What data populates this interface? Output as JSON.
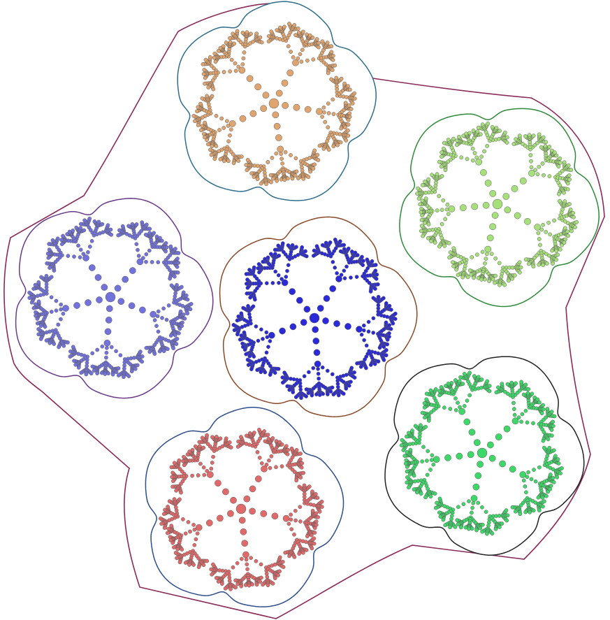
{
  "figure": {
    "background": "#ffffff",
    "outer_boundary_color": "#8b2a5a",
    "dot_stroke": "#5a5a5a",
    "depth": 3,
    "tiles": [
      {
        "name": "top",
        "fill": "#e0a46e",
        "edge": "#2e6e8c"
      },
      {
        "name": "upper-right",
        "fill": "#a6e07a",
        "edge": "#2e8a3a"
      },
      {
        "name": "left",
        "fill": "#7272dc",
        "edge": "#6a3a8a"
      },
      {
        "name": "center",
        "fill": "#2a2ad8",
        "edge": "#8a4a2a"
      },
      {
        "name": "lower-right",
        "fill": "#3ed868",
        "edge": "#222222"
      },
      {
        "name": "bottom",
        "fill": "#e06a6a",
        "edge": "#2e4e8c"
      }
    ]
  }
}
